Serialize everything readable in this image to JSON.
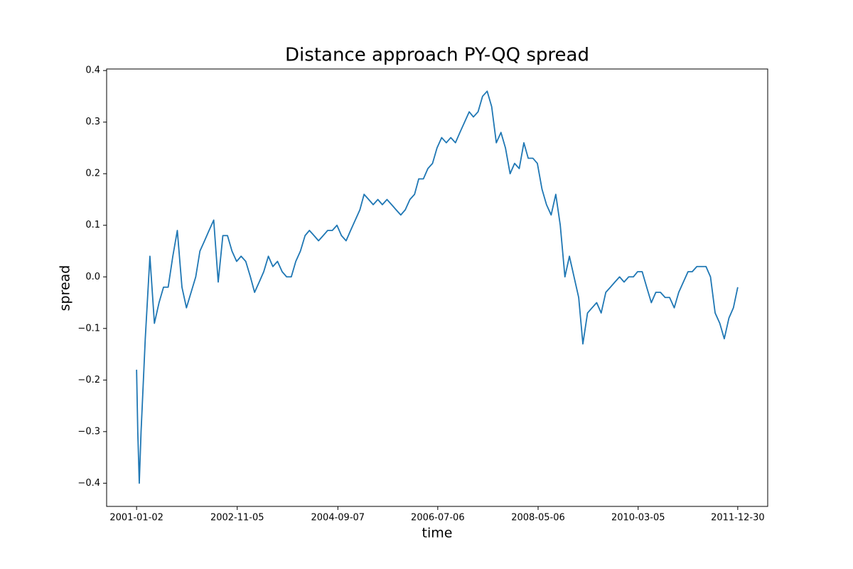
{
  "chart_data": {
    "type": "line",
    "title": "Distance approach PY-QQ spread",
    "x_label": "time",
    "y_label": "spread",
    "x": [
      "2001-01-02",
      "2001-01-10",
      "2001-01-20",
      "2001-02-01",
      "2001-03-01",
      "2001-04-01",
      "2001-05-01",
      "2001-06-01",
      "2001-07-01",
      "2001-08-01",
      "2001-09-01",
      "2001-10-01",
      "2001-11-01",
      "2001-12-01",
      "2002-01-01",
      "2002-02-01",
      "2002-03-01",
      "2002-04-01",
      "2002-05-01",
      "2002-06-01",
      "2002-07-01",
      "2002-08-01",
      "2002-09-01",
      "2002-10-01",
      "2002-11-01",
      "2002-12-01",
      "2003-01-01",
      "2003-02-01",
      "2003-03-01",
      "2003-04-01",
      "2003-05-01",
      "2003-06-01",
      "2003-07-01",
      "2003-08-01",
      "2003-09-01",
      "2003-10-01",
      "2003-11-01",
      "2003-12-01",
      "2004-01-01",
      "2004-02-01",
      "2004-03-01",
      "2004-04-01",
      "2004-05-01",
      "2004-06-01",
      "2004-07-01",
      "2004-08-01",
      "2004-09-01",
      "2004-10-01",
      "2004-11-01",
      "2004-12-01",
      "2005-01-01",
      "2005-02-01",
      "2005-03-01",
      "2005-04-01",
      "2005-05-01",
      "2005-06-01",
      "2005-07-01",
      "2005-08-01",
      "2005-09-01",
      "2005-10-01",
      "2005-11-01",
      "2005-12-01",
      "2006-01-01",
      "2006-02-01",
      "2006-03-01",
      "2006-04-01",
      "2006-05-01",
      "2006-06-01",
      "2006-07-01",
      "2006-08-01",
      "2006-09-01",
      "2006-10-01",
      "2006-11-01",
      "2006-12-01",
      "2007-01-01",
      "2007-02-01",
      "2007-03-01",
      "2007-04-01",
      "2007-05-01",
      "2007-06-01",
      "2007-07-01",
      "2007-08-01",
      "2007-09-01",
      "2007-10-01",
      "2007-11-01",
      "2007-12-01",
      "2008-01-01",
      "2008-02-01",
      "2008-03-01",
      "2008-04-01",
      "2008-05-01",
      "2008-06-01",
      "2008-07-01",
      "2008-08-01",
      "2008-09-01",
      "2008-10-01",
      "2008-11-01",
      "2008-12-01",
      "2009-01-01",
      "2009-02-01",
      "2009-03-01",
      "2009-04-01",
      "2009-05-01",
      "2009-06-01",
      "2009-07-01",
      "2009-08-01",
      "2009-09-01",
      "2009-10-01",
      "2009-11-01",
      "2009-12-01",
      "2010-01-01",
      "2010-02-01",
      "2010-03-01",
      "2010-04-01",
      "2010-05-01",
      "2010-06-01",
      "2010-07-01",
      "2010-08-01",
      "2010-09-01",
      "2010-10-01",
      "2010-11-01",
      "2010-12-01",
      "2011-01-01",
      "2011-02-01",
      "2011-03-01",
      "2011-04-01",
      "2011-05-01",
      "2011-06-01",
      "2011-07-01",
      "2011-08-01",
      "2011-09-01",
      "2011-10-01",
      "2011-11-01",
      "2011-12-01",
      "2011-12-30"
    ],
    "series": [
      {
        "name": "spread",
        "color": "#1f77b4",
        "values": [
          -0.18,
          -0.3,
          -0.4,
          -0.3,
          -0.12,
          0.04,
          -0.09,
          -0.05,
          -0.02,
          -0.02,
          0.04,
          0.09,
          -0.02,
          -0.06,
          -0.03,
          0.0,
          0.05,
          0.07,
          0.09,
          0.11,
          -0.01,
          0.08,
          0.08,
          0.05,
          0.03,
          0.04,
          0.03,
          0.0,
          -0.03,
          -0.01,
          0.01,
          0.04,
          0.02,
          0.03,
          0.01,
          0.0,
          0.0,
          0.03,
          0.05,
          0.08,
          0.09,
          0.08,
          0.07,
          0.08,
          0.09,
          0.09,
          0.1,
          0.08,
          0.07,
          0.09,
          0.11,
          0.13,
          0.16,
          0.15,
          0.14,
          0.15,
          0.14,
          0.15,
          0.14,
          0.13,
          0.12,
          0.13,
          0.15,
          0.16,
          0.19,
          0.19,
          0.21,
          0.22,
          0.25,
          0.27,
          0.26,
          0.27,
          0.26,
          0.28,
          0.3,
          0.32,
          0.31,
          0.32,
          0.35,
          0.36,
          0.33,
          0.26,
          0.28,
          0.25,
          0.2,
          0.22,
          0.21,
          0.26,
          0.23,
          0.23,
          0.22,
          0.17,
          0.14,
          0.12,
          0.16,
          0.1,
          0.0,
          0.04,
          0.0,
          -0.04,
          -0.13,
          -0.07,
          -0.06,
          -0.05,
          -0.07,
          -0.03,
          -0.02,
          -0.01,
          0.0,
          -0.01,
          0.0,
          0.0,
          0.01,
          0.01,
          -0.02,
          -0.05,
          -0.03,
          -0.03,
          -0.04,
          -0.04,
          -0.06,
          -0.03,
          -0.01,
          0.01,
          0.01,
          0.02,
          0.02,
          0.02,
          0.0,
          -0.07,
          -0.09,
          -0.12,
          -0.08,
          -0.06,
          -0.02
        ]
      }
    ],
    "xlim": [
      "2000-06-16",
      "2012-07-17"
    ],
    "xticks": [
      "2001-01-02",
      "2002-11-05",
      "2004-09-07",
      "2006-07-06",
      "2008-05-06",
      "2010-03-05",
      "2011-12-30"
    ],
    "ylim": [
      -0.445,
      0.403
    ],
    "yticks": [
      {
        "value": -0.4,
        "label": "−0.4"
      },
      {
        "value": -0.3,
        "label": "−0.3"
      },
      {
        "value": -0.2,
        "label": "−0.2"
      },
      {
        "value": -0.1,
        "label": "−0.1"
      },
      {
        "value": 0,
        "label": "0.0"
      },
      0.1,
      0.2,
      0.3,
      0.4
    ],
    "grid": false
  }
}
